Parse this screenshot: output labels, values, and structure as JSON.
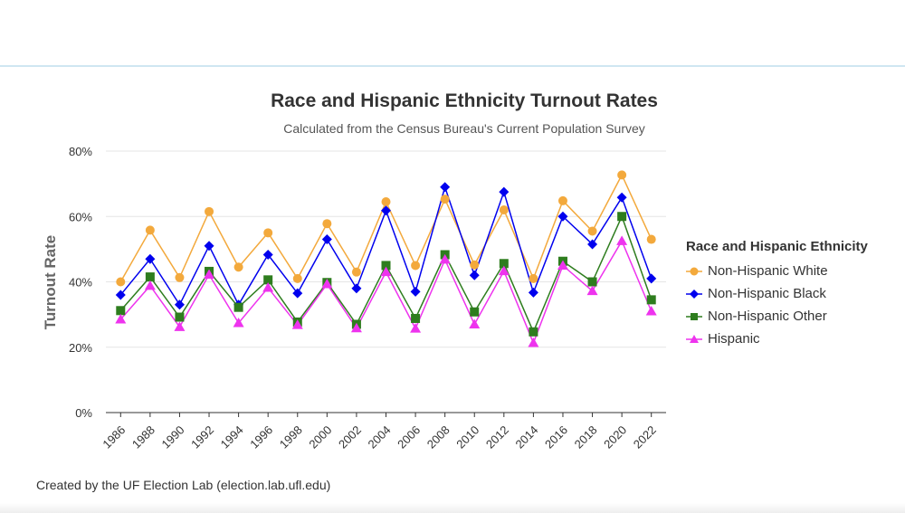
{
  "chart_data": {
    "type": "line",
    "title": "Race and Hispanic Ethnicity Turnout Rates",
    "subtitle": "Calculated from the Census Bureau's Current Population Survey",
    "xlabel": "",
    "ylabel": "Turnout Rate",
    "ylim": [
      0,
      80
    ],
    "yticks": [
      "0%",
      "20%",
      "40%",
      "60%",
      "80%"
    ],
    "grid": true,
    "legend_title": "Race and Hispanic Ethnicity",
    "legend_position": "right",
    "categories": [
      "1986",
      "1988",
      "1990",
      "1992",
      "1994",
      "1996",
      "1998",
      "2000",
      "2002",
      "2004",
      "2006",
      "2008",
      "2010",
      "2012",
      "2014",
      "2016",
      "2018",
      "2020",
      "2022"
    ],
    "series": [
      {
        "name": "Non-Hispanic White",
        "color": "#f3a93c",
        "marker": "circle",
        "values": [
          40,
          55.8,
          41.3,
          61.5,
          44.5,
          55,
          41,
          57.8,
          43,
          64.5,
          45,
          65.3,
          45.2,
          62,
          41,
          64.8,
          55.5,
          72.7,
          53
        ]
      },
      {
        "name": "Non-Hispanic Black",
        "color": "#0000ee",
        "marker": "diamond",
        "values": [
          36,
          47,
          33,
          51,
          33,
          48.3,
          36.5,
          53,
          38,
          61.8,
          37,
          69,
          42,
          67.5,
          36.7,
          60,
          51.5,
          65.8,
          41
        ]
      },
      {
        "name": "Non-Hispanic Other",
        "color": "#2e7d1e",
        "marker": "square",
        "values": [
          31.2,
          41.5,
          29.2,
          43.2,
          32.2,
          40.6,
          27.7,
          39.8,
          27,
          45,
          28.8,
          48.3,
          30.8,
          45.6,
          24.7,
          46.3,
          40,
          60,
          34.5
        ]
      },
      {
        "name": "Hispanic",
        "color": "#ee33ee",
        "marker": "triangle",
        "values": [
          28.5,
          38.8,
          26.2,
          42.2,
          27.4,
          38.2,
          26.8,
          39.3,
          25.8,
          43,
          25.7,
          46.8,
          27,
          43.3,
          21.3,
          45,
          37.2,
          52.5,
          31
        ]
      }
    ]
  },
  "footer": {
    "credit": "Created by the UF Election Lab (election.lab.ufl.edu)"
  }
}
